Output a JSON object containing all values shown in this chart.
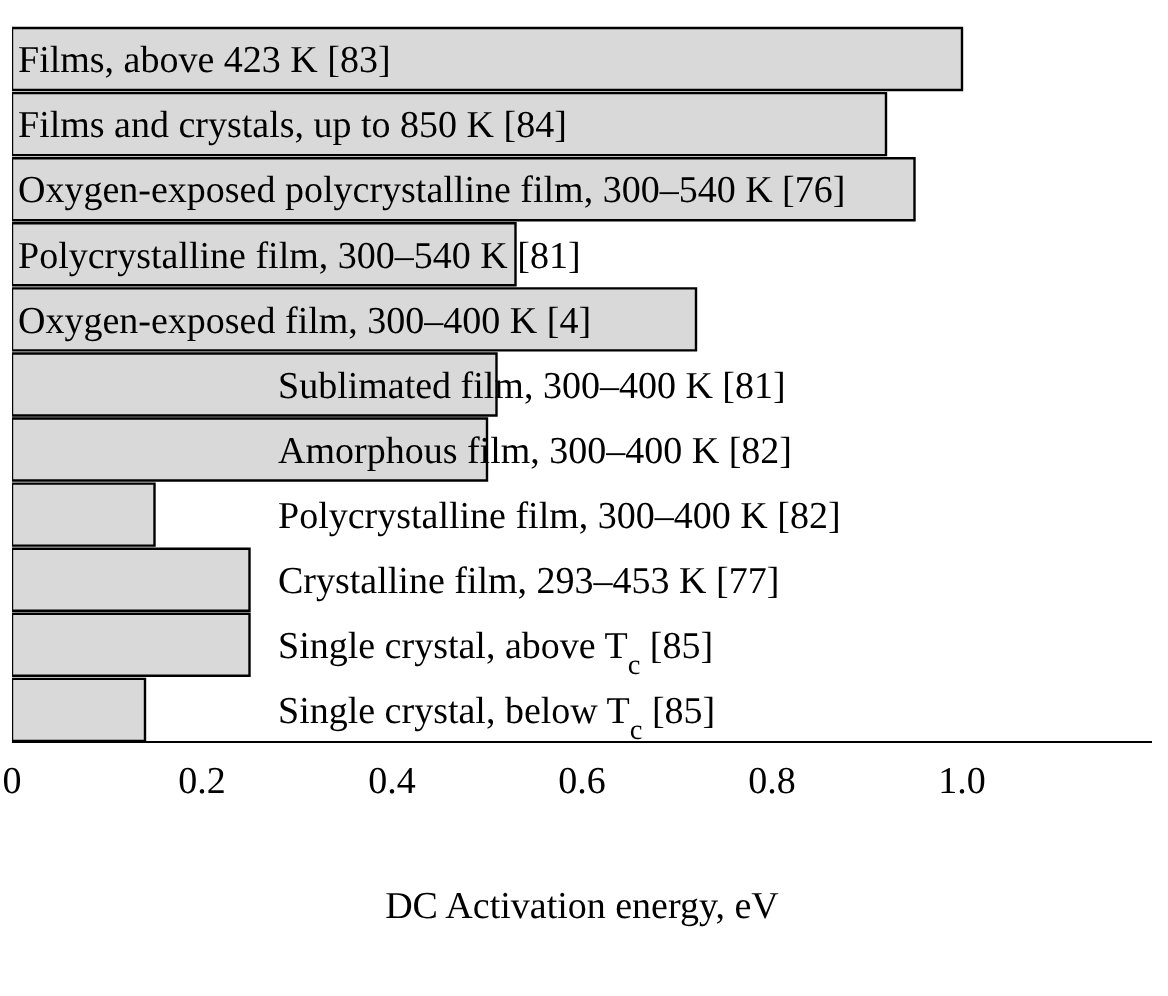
{
  "chart_data": {
    "type": "bar",
    "orientation": "horizontal",
    "xlabel": "DC Activation energy, eV",
    "categories": [
      "Films, above 423 K [83]",
      "Films and crystals, up to 850 K [84]",
      "Oxygen-exposed polycrystalline film, 300–540 K [76]",
      "Polycrystalline film, 300–540 K [81]",
      "Oxygen-exposed film, 300–400 K [4]",
      "Sublimated film, 300–400 K [81]",
      "Amorphous film, 300–400 K [82]",
      "Polycrystalline film, 300–400 K [82]",
      "Crystalline film, 293–453 K [77]",
      "Single crystal, above T$_{c}$ [85]",
      "Single crystal, below T$_{c}$ [85]"
    ],
    "values": [
      1.0,
      0.92,
      0.95,
      0.53,
      0.72,
      0.51,
      0.5,
      0.15,
      0.25,
      0.25,
      0.14
    ],
    "color": "#d9d9d9",
    "xlim": [
      0,
      1.2
    ],
    "xticks": [
      0,
      0.2,
      0.4,
      0.6,
      0.8,
      {
        "value": 1,
        "label": "1.0"
      }
    ]
  }
}
